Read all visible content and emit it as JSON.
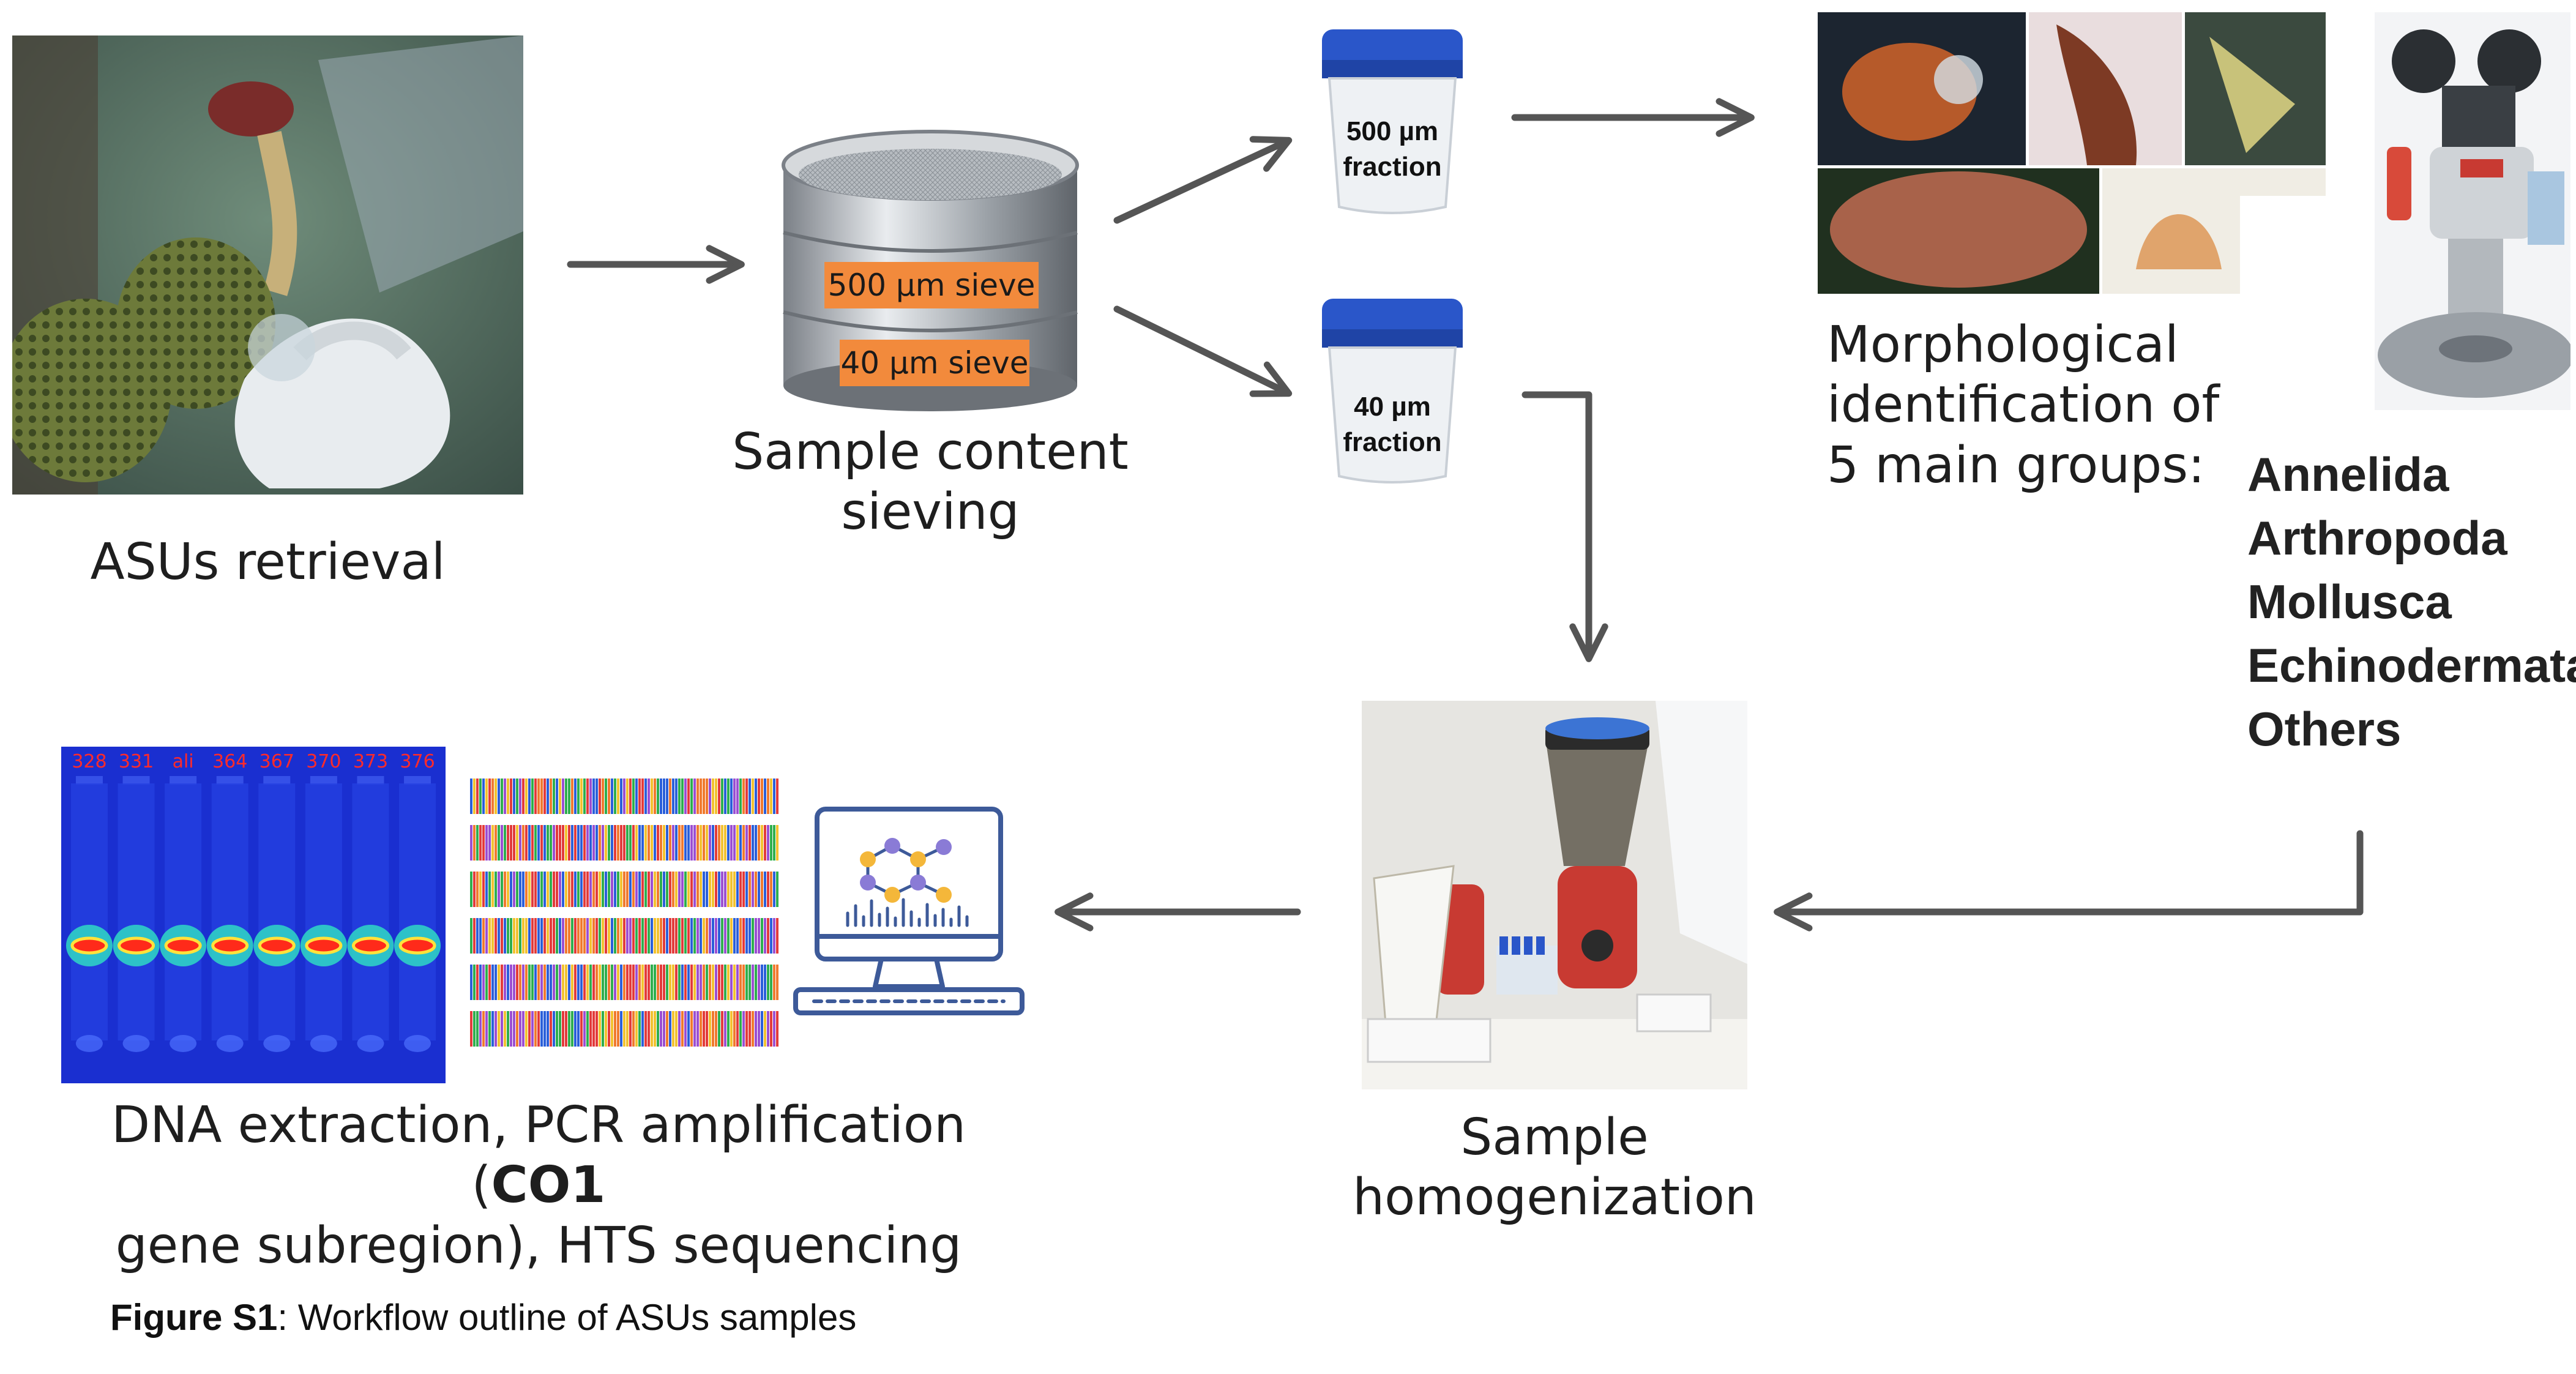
{
  "steps": {
    "retrieval": "ASUs retrieval",
    "sieving_line1": "Sample content",
    "sieving_line2": "sieving",
    "morph_line1": "Morphological",
    "morph_line2": "identification of",
    "morph_line3": "5 main groups:",
    "homog_line1": "Sample",
    "homog_line2": "homogenization",
    "dna_line1_pre": "DNA extraction, PCR amplification (",
    "dna_line1_bold": "CO1",
    "dna_line2": "gene subregion), HTS sequencing"
  },
  "sieve": {
    "top_label": "500 µm sieve",
    "bottom_label": "40 µm sieve"
  },
  "cups": {
    "top_line1": "500 µm",
    "top_line2": "fraction",
    "bottom_line1": "40 µm",
    "bottom_line2": "fraction"
  },
  "taxa": [
    "Annelida",
    "Arthropoda",
    "Mollusca",
    "Echinodermata",
    "Others"
  ],
  "gel_lanes": [
    "328",
    "331",
    "ali",
    "364",
    "367",
    "370",
    "373",
    "376"
  ],
  "caption": {
    "bold": "Figure S1",
    "text": ": Workflow outline of ASUs samples"
  },
  "colors": {
    "arrow": "#555555",
    "sieve_tag": "#f28a3c",
    "cup_lid": "#2a56c9",
    "gel_bg": "#1a2fd0",
    "computer": "#3d5a99"
  }
}
